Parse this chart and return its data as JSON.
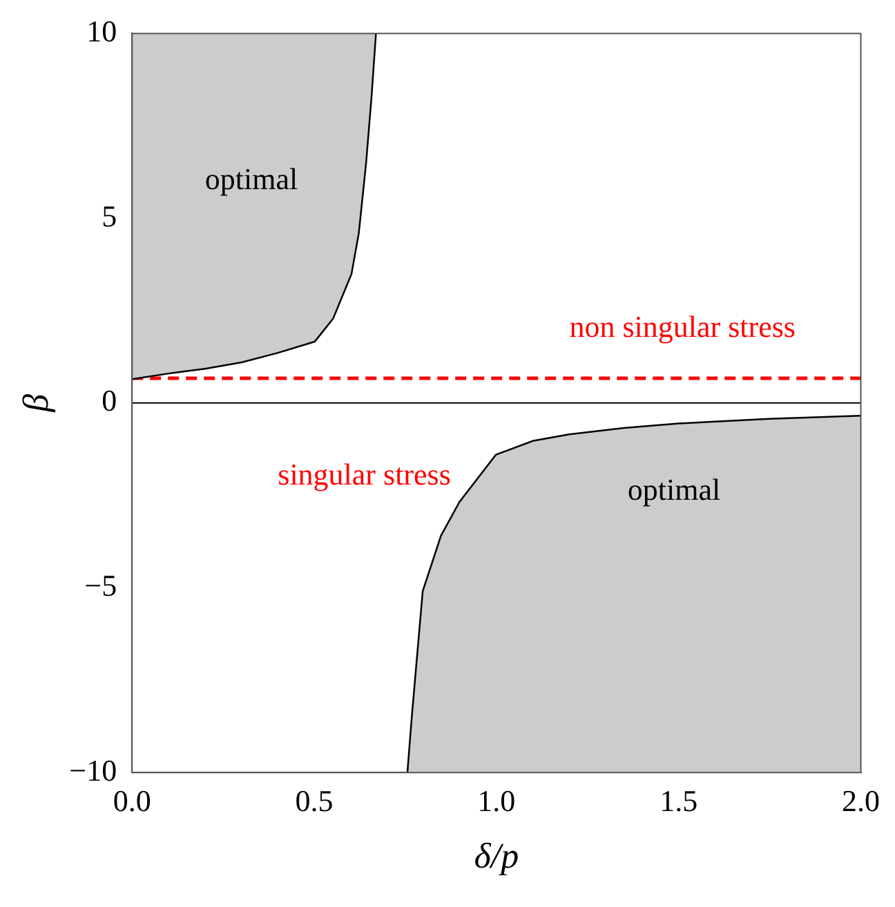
{
  "chart_data": {
    "type": "line",
    "xlabel": "δ/p",
    "ylabel": "β",
    "xlim": [
      0,
      2
    ],
    "ylim": [
      -10,
      10
    ],
    "xticks": [
      {
        "value": 0,
        "label": "0.0"
      },
      {
        "value": 0.5,
        "label": "0.5"
      },
      {
        "value": 1,
        "label": "1.0"
      },
      {
        "value": 1.5,
        "label": "1.5"
      },
      {
        "value": 2,
        "label": "2.0"
      }
    ],
    "yticks": [
      {
        "value": -10,
        "label": "−10"
      },
      {
        "value": -5,
        "label": "−5"
      },
      0,
      5,
      10
    ],
    "series": [
      {
        "type": "line",
        "color": "#000000",
        "x": [
          0,
          0.1,
          0.2,
          0.3,
          0.4,
          0.5,
          0.55,
          0.6,
          0.62,
          0.64,
          0.655,
          0.667
        ],
        "values": [
          0.67,
          0.82,
          0.95,
          1.12,
          1.38,
          1.68,
          2.3,
          3.5,
          4.6,
          6.5,
          8.3,
          10
        ],
        "lower": [
          0.67,
          0.82,
          0.95,
          1.12,
          1.38,
          1.68,
          2.3,
          3.5,
          4.6,
          6.5,
          8.3,
          10
        ],
        "upper": [
          10,
          10,
          10,
          10,
          10,
          10,
          10,
          10,
          10,
          10,
          10,
          10
        ]
      },
      {
        "type": "line",
        "color": "#000000",
        "x": [
          0.758,
          0.77,
          0.8,
          0.85,
          0.9,
          1,
          1.1,
          1.2,
          1.35,
          1.5,
          1.75,
          2
        ],
        "values": [
          -10,
          -8.5,
          -5.1,
          -3.6,
          -2.7,
          -1.42,
          -1.05,
          -0.87,
          -0.7,
          -0.58,
          -0.45,
          -0.37
        ],
        "lower": [
          -10,
          -10,
          -10,
          -10,
          -10,
          -10,
          -10,
          -10,
          -10,
          -10,
          -10,
          -10
        ],
        "upper": [
          -10,
          -8.5,
          -5.1,
          -3.6,
          -2.7,
          -1.42,
          -1.05,
          -0.87,
          -0.7,
          -0.58,
          -0.45,
          -0.37
        ]
      }
    ],
    "ref_lines": [
      {
        "axis": "y",
        "value": 0.67,
        "color": "#ff0000",
        "line_style": "dashed"
      },
      {
        "axis": "y",
        "value": 0,
        "color": "#000000",
        "line_style": "solid"
      }
    ],
    "annotations": [
      "optimal",
      "non singular stress",
      "singular stress",
      "optimal"
    ],
    "grid": false,
    "legend": false,
    "marker": "none",
    "line_style": "solid"
  }
}
